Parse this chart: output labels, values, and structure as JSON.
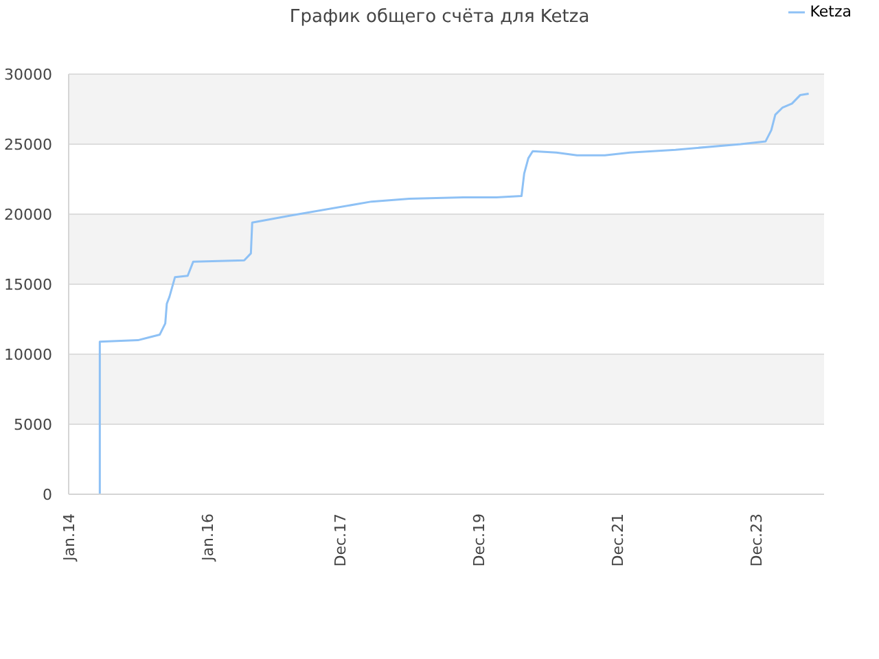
{
  "chart_data": {
    "type": "line",
    "title": "График общего счёта для Ketza",
    "x": [
      "2014-06-14",
      "2014-06-14",
      "2015-01-01",
      "2015-02-28",
      "2015-04-26",
      "2015-05-25",
      "2015-06-02",
      "2015-06-16",
      "2015-07-15",
      "2015-09-20",
      "2015-10-19",
      "2016-07-14",
      "2016-08-18",
      "2016-08-25",
      "2017-03-15",
      "2018-05-16",
      "2018-12-01",
      "2019-09-11",
      "2020-03-04",
      "2020-07-14",
      "2020-07-28",
      "2020-08-19",
      "2020-09-11",
      "2021-01-14",
      "2021-05-02",
      "2021-09-26",
      "2022-02-05",
      "2022-10-03",
      "2023-09-12",
      "2024-01-21",
      "2024-02-20",
      "2024-03-12",
      "2024-04-18",
      "2024-06-08",
      "2024-07-21",
      "2024-09-04"
    ],
    "series": [
      {
        "name": "Ketza",
        "color": "#8ec1f5",
        "values": [
          0,
          10900,
          11000,
          11200,
          11400,
          12200,
          13600,
          14100,
          15500,
          15600,
          16600,
          16700,
          17200,
          19400,
          19900,
          20900,
          21100,
          21200,
          21200,
          21300,
          22900,
          24000,
          24500,
          24400,
          24200,
          24200,
          24400,
          24600,
          25000,
          25200,
          26000,
          27100,
          27600,
          27900,
          28500,
          28600
        ]
      }
    ],
    "xlim": [
      "2014-01",
      "2024-11-24"
    ],
    "xticks": [
      {
        "value": "2014-01",
        "label": "Jan.14"
      },
      {
        "value": "2016-01",
        "label": "Jan.16"
      },
      {
        "value": "2017-12",
        "label": "Dec.17"
      },
      {
        "value": "2019-12",
        "label": "Dec.19"
      },
      {
        "value": "2021-12",
        "label": "Dec.21"
      },
      {
        "value": "2023-12",
        "label": "Dec.23"
      }
    ],
    "ylim": [
      0,
      30000
    ],
    "yticks": [
      0,
      5000,
      10000,
      15000,
      20000,
      25000,
      30000
    ],
    "grid": "y",
    "legend": "top right",
    "marker": "none",
    "line_style": "solid"
  }
}
